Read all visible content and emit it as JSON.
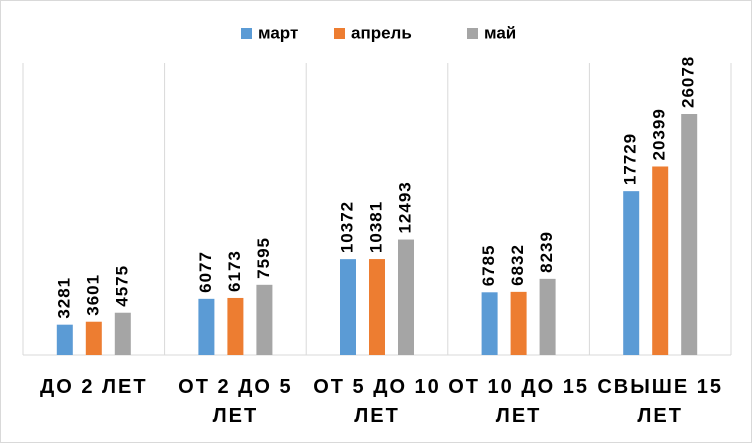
{
  "chart_data": {
    "type": "bar",
    "categories": [
      "ДО 2 ЛЕТ",
      "ОТ 2 ДО 5 ЛЕТ",
      "ОТ 5 ДО 10 ЛЕТ",
      "ОТ 10 ДО 15 ЛЕТ",
      "СВЫШЕ 15 ЛЕТ"
    ],
    "series": [
      {
        "name": "март",
        "color": "#5b9bd5",
        "values": [
          3281,
          6077,
          10372,
          6785,
          17729
        ]
      },
      {
        "name": "апрель",
        "color": "#ed7d31",
        "values": [
          3601,
          6173,
          10381,
          6832,
          20399
        ]
      },
      {
        "name": "май",
        "color": "#a5a5a5",
        "values": [
          4575,
          7595,
          12493,
          8239,
          26078
        ]
      }
    ],
    "legend": "top"
  }
}
